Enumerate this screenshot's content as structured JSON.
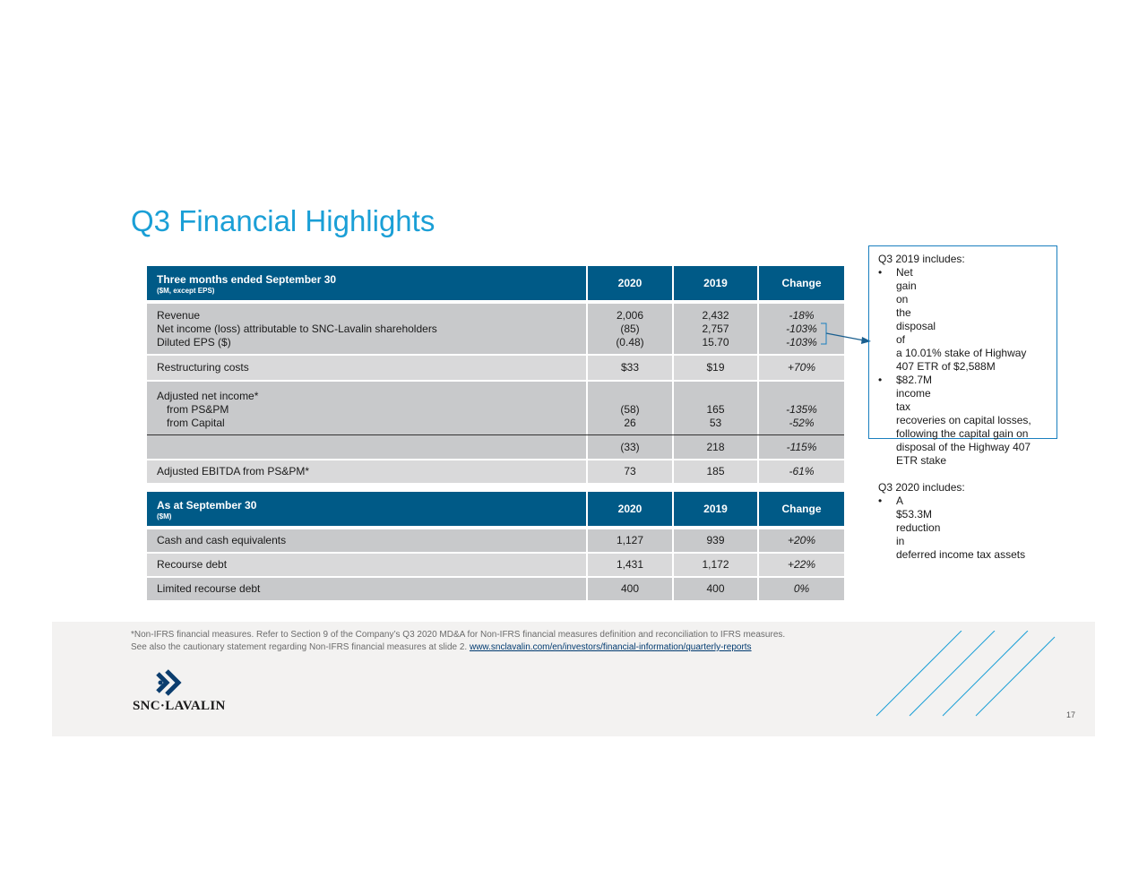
{
  "title": "Q3 Financial Highlights",
  "table1": {
    "header": {
      "label": "Three months ended September 30",
      "sublabel": "($M, except EPS)",
      "col1": "2020",
      "col2": "2019",
      "col3": "Change"
    },
    "rows": {
      "revenue": {
        "label": "Revenue",
        "v2020": "2,006",
        "v2019": "2,432",
        "change": "-18%"
      },
      "net_income": {
        "label": "Net income (loss) attributable to SNC-Lavalin shareholders",
        "v2020": "(85)",
        "v2019": "2,757",
        "change": "-103%"
      },
      "eps": {
        "label": "Diluted EPS ($)",
        "v2020": "(0.48)",
        "v2019": "15.70",
        "change": "-103%"
      },
      "restructuring": {
        "label": "Restructuring costs",
        "v2020": "$33",
        "v2019": "$19",
        "change": "+70%"
      },
      "adj_header": {
        "label": "Adjusted net income*"
      },
      "from_pspm": {
        "label": "from PS&PM",
        "v2020": "(58)",
        "v2019": "165",
        "change": "-135%"
      },
      "from_capital": {
        "label": "from Capital",
        "v2020": "26",
        "v2019": "53",
        "change": "-52%"
      },
      "adj_total": {
        "label": "",
        "v2020": "(33)",
        "v2019": "218",
        "change": "-115%"
      },
      "ebitda": {
        "label": "Adjusted EBITDA from PS&PM*",
        "v2020": "73",
        "v2019": "185",
        "change": "-61%"
      }
    }
  },
  "table2": {
    "header": {
      "label": "As at September 30",
      "sublabel": "($M)",
      "col1": "2020",
      "col2": "2019",
      "col3": "Change"
    },
    "rows": {
      "cash": {
        "label": "Cash and cash equivalents",
        "v2020": "1,127",
        "v2019": "939",
        "change": "+20%"
      },
      "recourse": {
        "label": "Recourse debt",
        "v2020": "1,431",
        "v2019": "1,172",
        "change": "+22%"
      },
      "limited": {
        "label": "Limited recourse debt",
        "v2020": "400",
        "v2019": "400",
        "change": "0%"
      }
    }
  },
  "note": {
    "q3_2019_title": "Q3 2019 includes:",
    "bullet": "•",
    "b1_lines": [
      "Net gain on the disposal of",
      "a 10.01% stake of Highway",
      "407 ETR of $2,588M"
    ],
    "b2_lines": [
      "$82.7M income tax",
      "recoveries on capital losses,",
      "following the capital gain on",
      "disposal of the Highway 407",
      "ETR stake"
    ],
    "q3_2020_title": "Q3 2020 includes:",
    "b3_lines": [
      "A $53.3M reduction in",
      "deferred income tax assets"
    ]
  },
  "footer": {
    "line1": "*Non-IFRS financial measures. Refer to Section 9 of the Company’s Q3 2020 MD&A for Non-IFRS financial measures definition and reconciliation to IFRS measures.",
    "line2": "See also the cautionary statement regarding Non-IFRS financial measures at slide 2. ",
    "link": "www.snclavalin.com/en/investors/financial-information/quarterly-reports",
    "logo_text": "SNC·LAVALIN",
    "page": "17"
  },
  "colors": {
    "title": "#1a9fd6",
    "header_bg": "#005a87",
    "row_bg": "#c8c9cb",
    "row_bg_light": "#d9d9da",
    "accent_line": "#1a7fbf"
  }
}
